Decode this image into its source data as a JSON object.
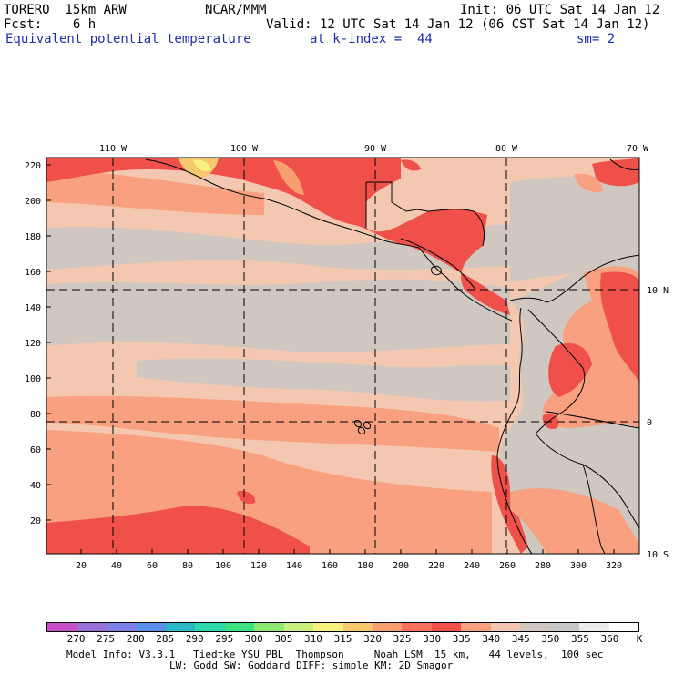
{
  "header": {
    "model": "TORERO  15km ARW",
    "center": "NCAR/MMM",
    "init": "Init: 06 UTC Sat 14 Jan 12",
    "fcst": "Fcst:    6 h",
    "valid": "Valid: 12 UTC Sat 14 Jan 12 (06 CST Sat 14 Jan 12)",
    "field": "Equivalent potential temperature",
    "level": "at k-index =  44",
    "smoothing": "sm= 2"
  },
  "map": {
    "lon_labels": [
      "110 W",
      "100 W",
      "90 W",
      "80 W",
      "70 W"
    ],
    "lat_labels": [
      "10 N",
      "0",
      "10 S"
    ],
    "y_ticks": [
      "220",
      "200",
      "180",
      "160",
      "140",
      "120",
      "100",
      "80",
      "60",
      "40",
      "20"
    ],
    "x_ticks": [
      "20",
      "40",
      "60",
      "80",
      "100",
      "120",
      "140",
      "160",
      "180",
      "200",
      "220",
      "240",
      "260",
      "280",
      "300",
      "320"
    ]
  },
  "colorbar": {
    "labels": [
      "270",
      "275",
      "280",
      "285",
      "290",
      "295",
      "300",
      "305",
      "310",
      "315",
      "320",
      "325",
      "330",
      "335",
      "340",
      "345",
      "350",
      "355",
      "360",
      "K"
    ],
    "colors": [
      "#c84fc8",
      "#9a6fd8",
      "#7f7fe8",
      "#5a90e8",
      "#2fb8c8",
      "#2fd8a8",
      "#3fe07f",
      "#8fe86f",
      "#c8f07f",
      "#f8f07f",
      "#f8c86f",
      "#f89f6f",
      "#f86f5a",
      "#f0504a",
      "#f8a080",
      "#f4c8b0",
      "#d0c8c0",
      "#c8c8c8",
      "#ececec",
      "#ffffff"
    ]
  },
  "footer": {
    "line1": "Model Info: V3.3.1   Tiedtke YSU PBL  Thompson     Noah LSM  15 km,   44 levels,  100 sec",
    "line2": "LW: Godd SW: Goddard DIFF: simple KM: 2D Smagor"
  }
}
